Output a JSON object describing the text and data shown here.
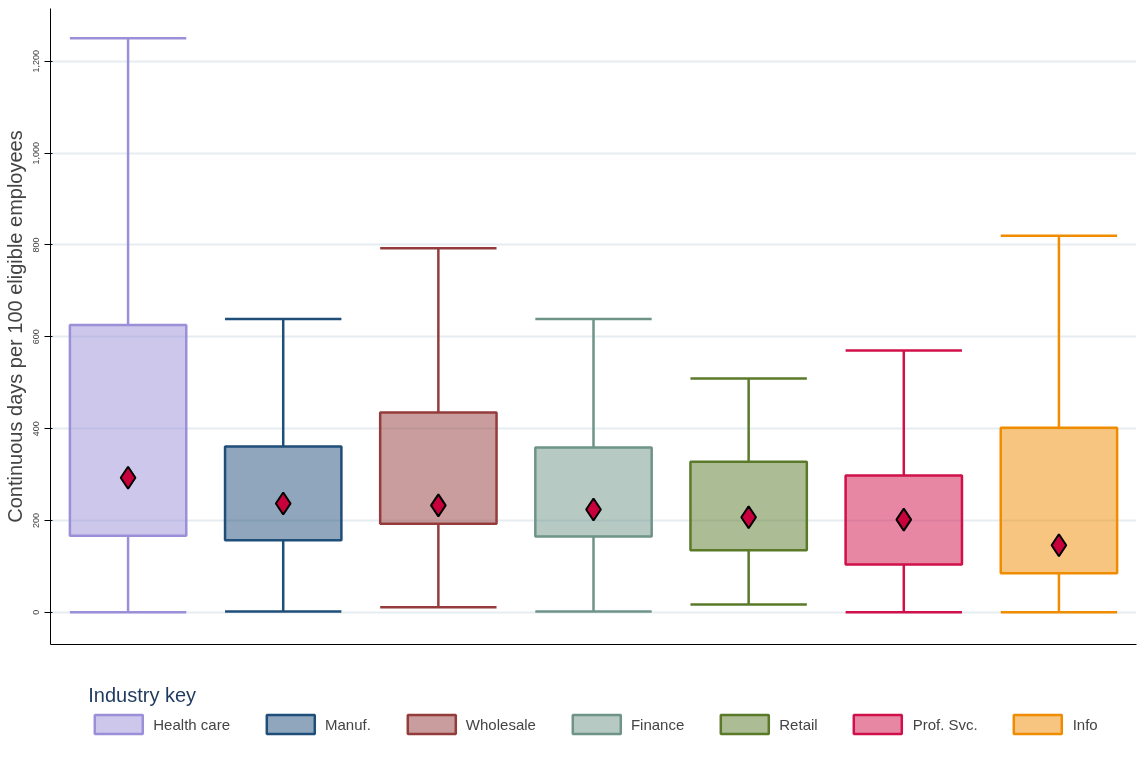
{
  "chart_data": {
    "type": "box",
    "ylabel": "Continuous days per 100 eligible employees",
    "legend_title": "Industry key",
    "categories": [
      null,
      null,
      null,
      null,
      null,
      null,
      null
    ],
    "ylim": [
      -70,
      1315
    ],
    "yticks": [
      0,
      200,
      400,
      600,
      800,
      {
        "value": 1000,
        "label": "1,000"
      },
      {
        "value": 1200,
        "label": "1,200"
      }
    ],
    "grid": "y",
    "legend": "bottom",
    "tick_labels": "y",
    "marker": "diamond",
    "series": [
      {
        "name": "Health care",
        "color": "#9a8fd8",
        "boxes": [
          {
            "low": 0,
            "q1": 167,
            "median": 293,
            "q3": 626,
            "high": 1250
          },
          null,
          null,
          null,
          null,
          null,
          null
        ]
      },
      {
        "name": "Manuf.",
        "color": "#1f4e79",
        "boxes": [
          null,
          {
            "low": 2,
            "q1": 157,
            "median": 237,
            "q3": 361,
            "high": 639
          },
          null,
          null,
          null,
          null,
          null
        ]
      },
      {
        "name": "Wholesale",
        "color": "#943c3c",
        "boxes": [
          null,
          null,
          {
            "low": 11,
            "q1": 193,
            "median": 233,
            "q3": 435,
            "high": 793
          },
          null,
          null,
          null,
          null
        ]
      },
      {
        "name": "Finance",
        "color": "#6e9487",
        "boxes": [
          null,
          null,
          null,
          {
            "low": 2,
            "q1": 165,
            "median": 224,
            "q3": 359,
            "high": 639
          },
          null,
          null,
          null
        ]
      },
      {
        "name": "Retail",
        "color": "#5a7a2a",
        "boxes": [
          null,
          null,
          null,
          null,
          {
            "low": 17,
            "q1": 135,
            "median": 207,
            "q3": 328,
            "high": 509
          },
          null,
          null
        ]
      },
      {
        "name": "Prof. Svc.",
        "color": "#d0104a",
        "boxes": [
          null,
          null,
          null,
          null,
          null,
          {
            "low": 0,
            "q1": 104,
            "median": 202,
            "q3": 298,
            "high": 570
          },
          null
        ]
      },
      {
        "name": "Info",
        "color": "#f08c00",
        "boxes": [
          null,
          null,
          null,
          null,
          null,
          null,
          {
            "low": 0,
            "q1": 85,
            "median": 146,
            "q3": 402,
            "high": 820
          }
        ]
      }
    ]
  }
}
